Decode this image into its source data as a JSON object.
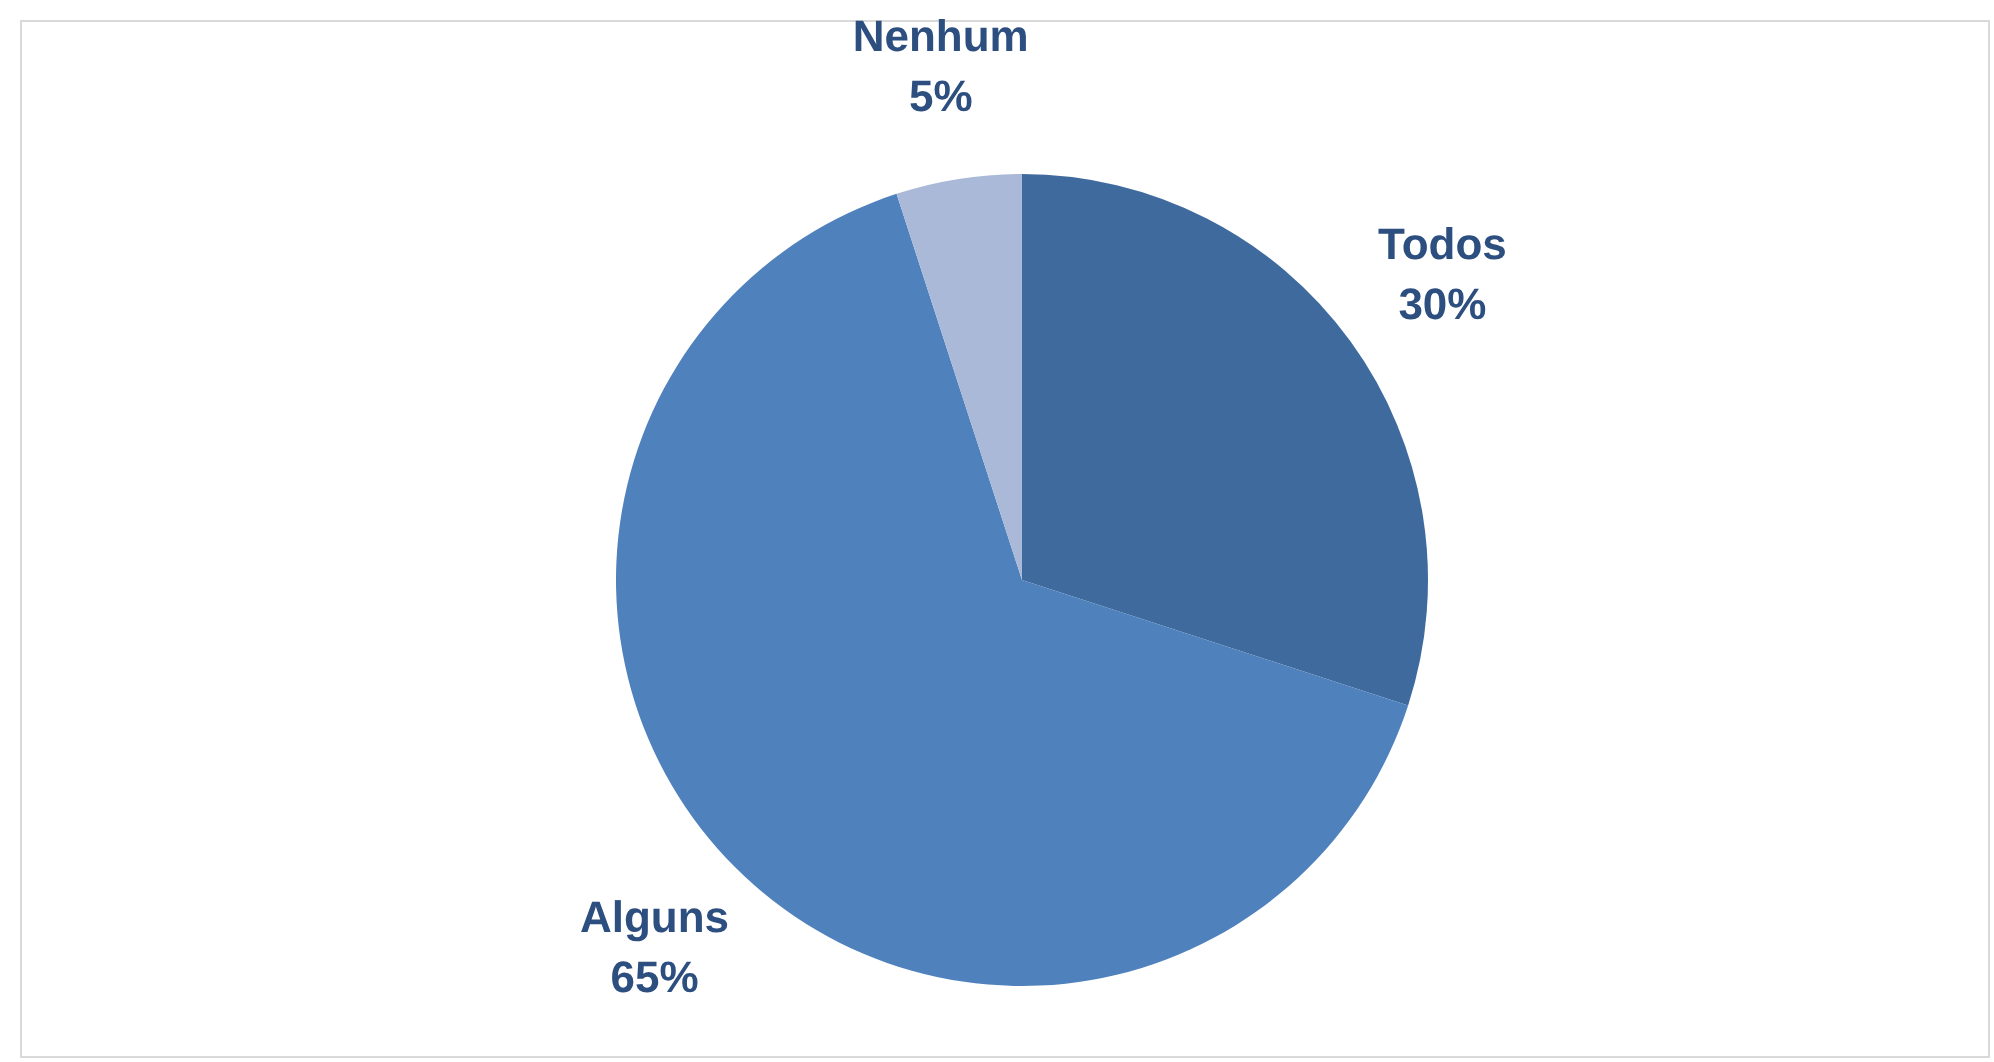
{
  "chart_data": {
    "type": "pie",
    "categories": [
      "Todos",
      "Alguns",
      "Nenhum"
    ],
    "values": [
      30,
      65,
      5
    ],
    "colors": [
      "#3f6a9e",
      "#4f81bd",
      "#aab9d8"
    ],
    "value_labels": [
      "30%",
      "65%",
      "5%"
    ],
    "legend": false
  }
}
